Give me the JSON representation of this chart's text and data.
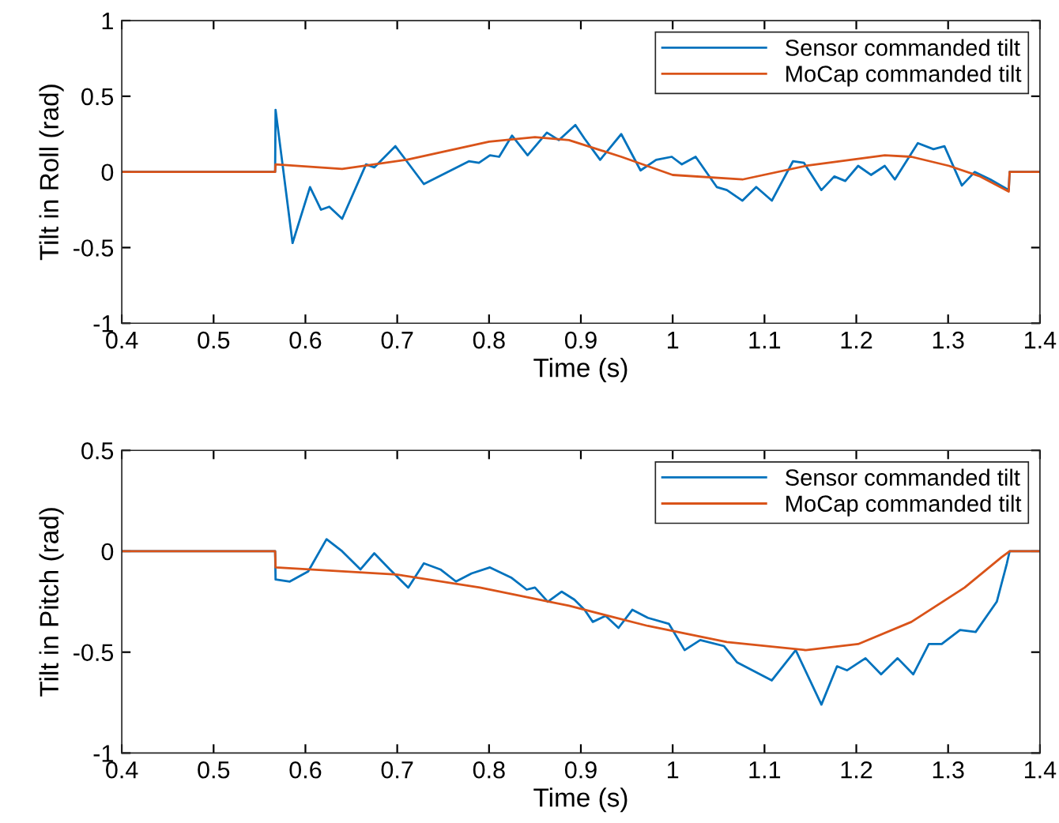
{
  "chart_data": [
    {
      "type": "line",
      "xlabel": "Time (s)",
      "ylabel": "Tilt in Roll (rad)",
      "xlim": [
        0.4,
        1.4
      ],
      "xticks": [
        0.4,
        0.5,
        0.6,
        0.7,
        0.8,
        0.9,
        1,
        1.1,
        1.2,
        1.3,
        1.4
      ],
      "ylim": [
        -1,
        1
      ],
      "yticks": [
        -1,
        -0.5,
        0,
        0.5,
        1
      ],
      "grid": false,
      "legend": "top right",
      "series": [
        {
          "name": "Sensor commanded tilt",
          "color": "#0072bd",
          "x": [
            0.4,
            0.567,
            0.5675,
            0.586,
            0.605,
            0.617,
            0.626,
            0.64,
            0.666,
            0.675,
            0.698,
            0.729,
            0.755,
            0.778,
            0.789,
            0.801,
            0.811,
            0.825,
            0.842,
            0.863,
            0.876,
            0.894,
            0.904,
            0.921,
            0.944,
            0.965,
            0.982,
            0.999,
            1.01,
            1.025,
            1.048,
            1.059,
            1.076,
            1.091,
            1.108,
            1.131,
            1.143,
            1.162,
            1.176,
            1.188,
            1.202,
            1.216,
            1.231,
            1.242,
            1.267,
            1.284,
            1.296,
            1.315,
            1.329,
            1.346,
            1.366,
            1.367,
            1.4
          ],
          "values": [
            0,
            0,
            0.41,
            -0.47,
            -0.1,
            -0.25,
            -0.23,
            -0.31,
            0.05,
            0.03,
            0.17,
            -0.08,
            0,
            0.07,
            0.06,
            0.11,
            0.1,
            0.24,
            0.11,
            0.26,
            0.21,
            0.31,
            0.22,
            0.08,
            0.25,
            0.01,
            0.08,
            0.1,
            0.05,
            0.1,
            -0.1,
            -0.12,
            -0.19,
            -0.1,
            -0.19,
            0.07,
            0.06,
            -0.12,
            -0.03,
            -0.06,
            0.04,
            -0.02,
            0.04,
            -0.05,
            0.19,
            0.15,
            0.17,
            -0.09,
            0,
            -0.05,
            -0.12,
            0,
            0
          ]
        },
        {
          "name": "MoCap commanded tilt",
          "color": "#d95319",
          "x": [
            0.4,
            0.567,
            0.5675,
            0.64,
            0.71,
            0.755,
            0.8,
            0.85,
            0.887,
            0.944,
            1.0,
            1.076,
            1.145,
            1.231,
            1.26,
            1.301,
            1.335,
            1.366,
            1.367,
            1.4
          ],
          "values": [
            0,
            0,
            0.05,
            0.02,
            0.08,
            0.14,
            0.2,
            0.23,
            0.21,
            0.1,
            -0.02,
            -0.05,
            0.04,
            0.11,
            0.1,
            0.04,
            -0.03,
            -0.13,
            0,
            0
          ]
        }
      ]
    },
    {
      "type": "line",
      "xlabel": "Time (s)",
      "ylabel": "Tilt in Pitch (rad)",
      "xlim": [
        0.4,
        1.4
      ],
      "xticks": [
        0.4,
        0.5,
        0.6,
        0.7,
        0.8,
        0.9,
        1,
        1.1,
        1.2,
        1.3,
        1.4
      ],
      "ylim": [
        -1,
        0.5
      ],
      "yticks": [
        -1,
        -0.5,
        0,
        0.5
      ],
      "grid": false,
      "legend": "top right",
      "series": [
        {
          "name": "Sensor commanded tilt",
          "color": "#0072bd",
          "x": [
            0.4,
            0.567,
            0.5675,
            0.583,
            0.603,
            0.623,
            0.64,
            0.66,
            0.675,
            0.692,
            0.712,
            0.729,
            0.747,
            0.764,
            0.781,
            0.801,
            0.824,
            0.841,
            0.85,
            0.864,
            0.879,
            0.893,
            0.904,
            0.913,
            0.927,
            0.941,
            0.956,
            0.973,
            0.996,
            1.013,
            1.03,
            1.056,
            1.07,
            1.108,
            1.134,
            1.162,
            1.179,
            1.19,
            1.21,
            1.227,
            1.245,
            1.262,
            1.279,
            1.293,
            1.313,
            1.33,
            1.353,
            1.364,
            1.367,
            1.4
          ],
          "values": [
            0,
            0,
            -0.14,
            -0.15,
            -0.1,
            0.06,
            0,
            -0.09,
            -0.01,
            -0.09,
            -0.18,
            -0.06,
            -0.09,
            -0.15,
            -0.11,
            -0.08,
            -0.13,
            -0.19,
            -0.18,
            -0.25,
            -0.2,
            -0.24,
            -0.29,
            -0.35,
            -0.32,
            -0.38,
            -0.29,
            -0.33,
            -0.36,
            -0.49,
            -0.44,
            -0.47,
            -0.55,
            -0.64,
            -0.49,
            -0.76,
            -0.57,
            -0.59,
            -0.53,
            -0.61,
            -0.53,
            -0.61,
            -0.46,
            -0.46,
            -0.39,
            -0.4,
            -0.25,
            -0.06,
            0,
            0
          ]
        },
        {
          "name": "MoCap commanded tilt",
          "color": "#d95319",
          "x": [
            0.4,
            0.567,
            0.5675,
            0.699,
            0.79,
            0.887,
            0.973,
            1.059,
            1.145,
            1.202,
            1.26,
            1.318,
            1.358,
            1.367,
            1.4
          ],
          "values": [
            0,
            0,
            -0.08,
            -0.115,
            -0.18,
            -0.27,
            -0.37,
            -0.45,
            -0.49,
            -0.46,
            -0.35,
            -0.18,
            -0.03,
            0,
            0
          ]
        }
      ]
    }
  ]
}
